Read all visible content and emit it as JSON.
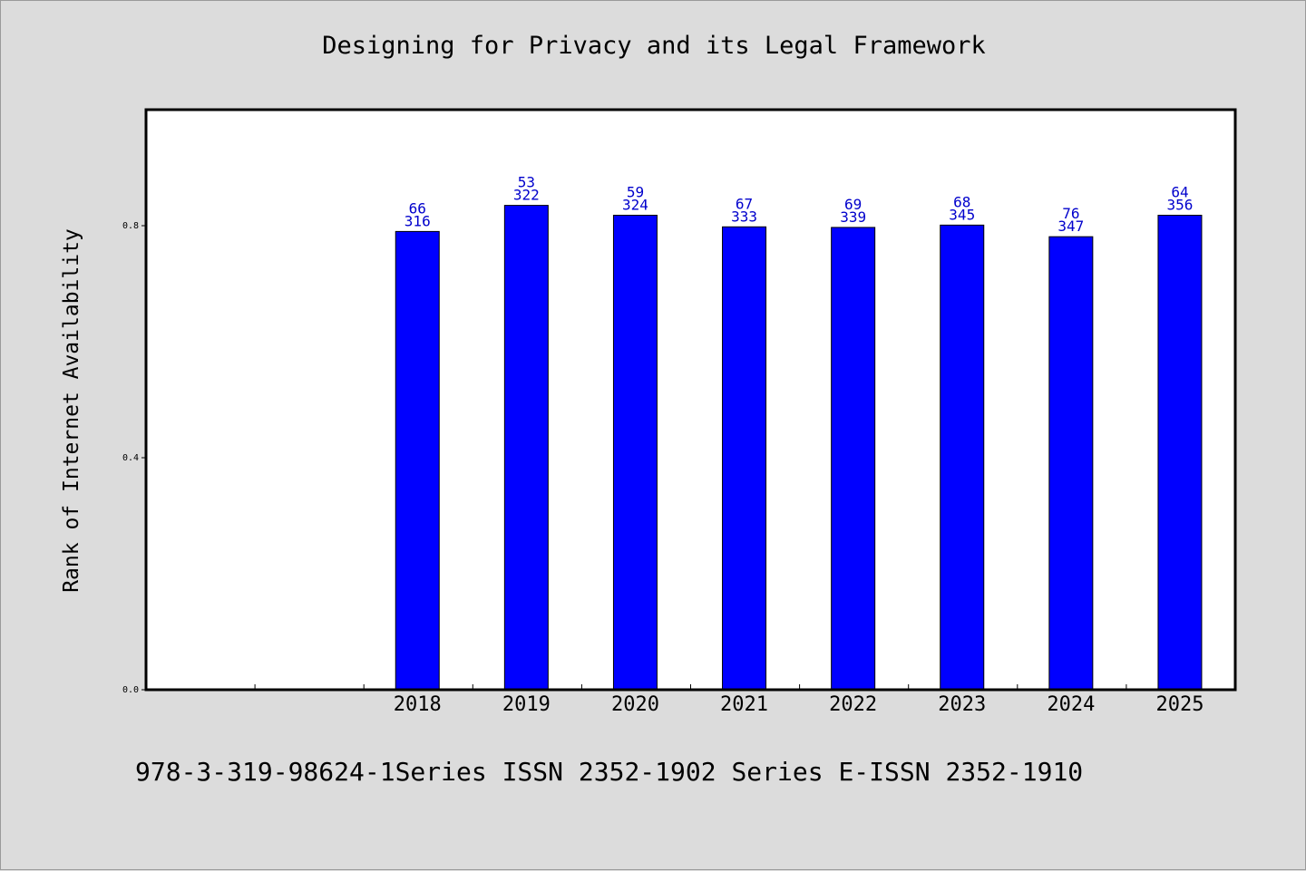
{
  "title": "Designing for Privacy and its Legal Framework",
  "footer": "978-3-319-98624-1Series ISSN 2352-1902 Series E-ISSN 2352-1910",
  "chart_data": {
    "type": "bar",
    "title": "Designing for Privacy and its Legal Framework",
    "xlabel": "",
    "ylabel": "Rank of Internet Availability",
    "ylim": [
      0,
      1.0
    ],
    "yticks": [
      0.0,
      0.4,
      0.8
    ],
    "ytick_labels": [
      "0.0",
      "0.4",
      "0.8"
    ],
    "categories": [
      "",
      "",
      "2018",
      "2019",
      "2020",
      "2021",
      "2022",
      "2023",
      "2024",
      "2025"
    ],
    "values": [
      null,
      null,
      0.79,
      0.835,
      0.818,
      0.798,
      0.797,
      0.801,
      0.781,
      0.818
    ],
    "data_labels_top": [
      "",
      "",
      "66",
      "53",
      "59",
      "67",
      "69",
      "68",
      "76",
      "64"
    ],
    "data_labels_bottom": [
      "",
      "",
      "316",
      "322",
      "324",
      "333",
      "339",
      "345",
      "347",
      "356"
    ],
    "grid": false,
    "legend": "none",
    "colors": {
      "bar": "#0000ff",
      "bar_edge": "#000000",
      "data_label": "#0000cc",
      "plot_background": "#ffffff",
      "figure_background": "#dcdcdc"
    }
  }
}
